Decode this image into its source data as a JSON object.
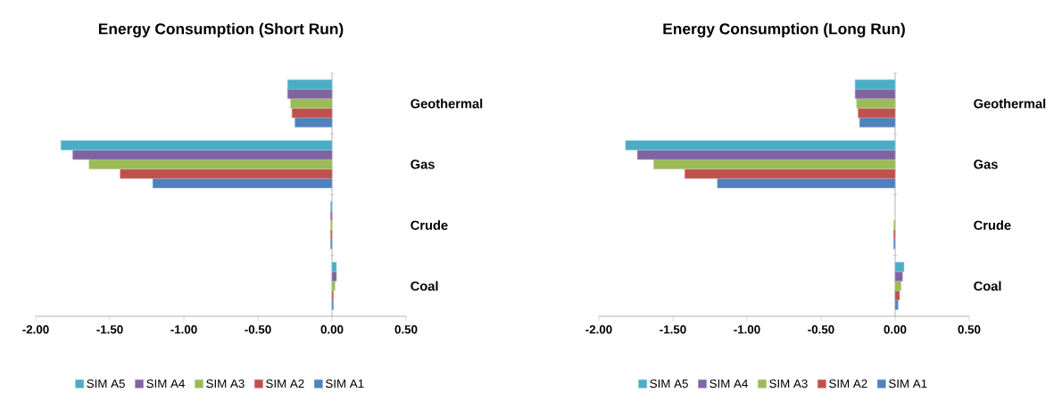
{
  "chart_data": [
    {
      "type": "bar",
      "orientation": "horizontal",
      "title": "Energy Consumption (Short Run)",
      "categories": [
        "Geothermal",
        "Gas",
        "Crude",
        "Coal"
      ],
      "series": [
        {
          "name": "SIM A1",
          "color": "#4f81bd",
          "values": [
            -0.25,
            -1.21,
            -0.01,
            0.01
          ]
        },
        {
          "name": "SIM A2",
          "color": "#c0504d",
          "values": [
            -0.27,
            -1.43,
            -0.01,
            0.01
          ]
        },
        {
          "name": "SIM A3",
          "color": "#9bbb59",
          "values": [
            -0.28,
            -1.64,
            -0.01,
            0.02
          ]
        },
        {
          "name": "SIM A4",
          "color": "#8064a2",
          "values": [
            -0.3,
            -1.75,
            -0.01,
            0.03
          ]
        },
        {
          "name": "SIM A5",
          "color": "#4bacc6",
          "values": [
            -0.3,
            -1.83,
            -0.01,
            0.03
          ]
        }
      ],
      "xlim": [
        -2,
        0.5
      ],
      "xticks": [
        {
          "value": -2,
          "label": "-2.00"
        },
        {
          "value": -1.5,
          "label": "-1.50"
        },
        {
          "value": -1,
          "label": "-1.00"
        },
        {
          "value": -0.5,
          "label": "-0.50"
        },
        {
          "value": 0,
          "label": "0.00"
        },
        {
          "value": 0.5,
          "label": "0.50"
        }
      ],
      "legend": "bottom"
    },
    {
      "type": "bar",
      "orientation": "horizontal",
      "title": "Energy Consumption (Long Run)",
      "categories": [
        "Geothermal",
        "Gas",
        "Crude",
        "Coal"
      ],
      "series": [
        {
          "name": "SIM A1",
          "color": "#4f81bd",
          "values": [
            -0.24,
            -1.2,
            -0.01,
            0.02
          ]
        },
        {
          "name": "SIM A2",
          "color": "#c0504d",
          "values": [
            -0.25,
            -1.42,
            -0.01,
            0.03
          ]
        },
        {
          "name": "SIM A3",
          "color": "#9bbb59",
          "values": [
            -0.26,
            -1.63,
            -0.01,
            0.04
          ]
        },
        {
          "name": "SIM A4",
          "color": "#8064a2",
          "values": [
            -0.27,
            -1.74,
            null,
            0.05
          ]
        },
        {
          "name": "SIM A5",
          "color": "#4bacc6",
          "values": [
            -0.27,
            -1.82,
            null,
            0.06
          ]
        }
      ],
      "xlim": [
        -2,
        0.5
      ],
      "xticks": [
        {
          "value": -2,
          "label": "-2.00"
        },
        {
          "value": -1.5,
          "label": "-1.50"
        },
        {
          "value": -1,
          "label": "-1.00"
        },
        {
          "value": -0.5,
          "label": "-0.50"
        },
        {
          "value": 0,
          "label": "0.00"
        },
        {
          "value": 0.5,
          "label": "0.50"
        }
      ],
      "legend": "bottom"
    }
  ]
}
